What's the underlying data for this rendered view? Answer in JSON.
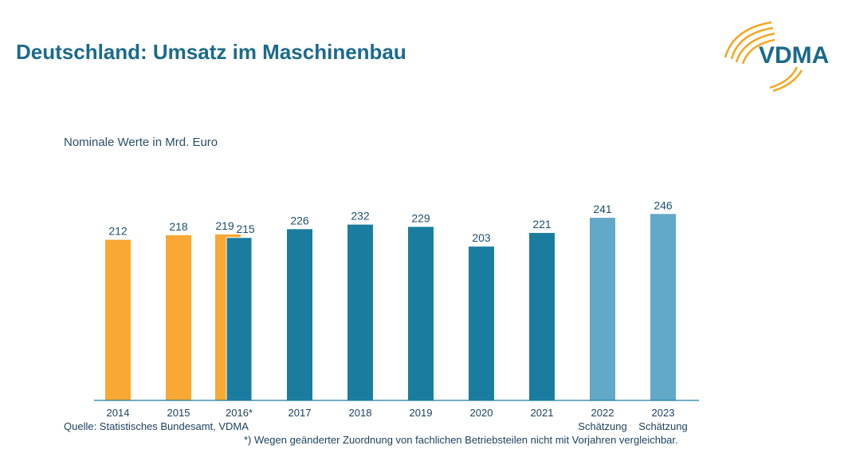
{
  "title": "Deutschland: Umsatz im Maschinenbau",
  "logo_text": "VDMA",
  "colors": {
    "title": "#1b6a8a",
    "old": "#f9a833",
    "new": "#1a7da0",
    "estimate": "#62a8c9"
  },
  "chart_data": {
    "type": "bar",
    "subtitle": "Nominale Werte in Mrd. Euro",
    "categories": [
      "2014",
      "2015",
      "2016*",
      "2017",
      "2018",
      "2019",
      "2020",
      "2021",
      "2022",
      "2023"
    ],
    "category_sublabels": [
      "",
      "",
      "",
      "",
      "",
      "",
      "",
      "",
      "Schätzung",
      "Schätzung"
    ],
    "series": [
      {
        "values": [
          212,
          218,
          219,
          null,
          null,
          null,
          null,
          null,
          null,
          null
        ],
        "color": "#f9a833"
      },
      {
        "values": [
          null,
          null,
          215,
          226,
          232,
          229,
          203,
          221,
          null,
          null
        ],
        "color": "#1a7da0"
      },
      {
        "values": [
          null,
          null,
          null,
          null,
          null,
          null,
          null,
          null,
          241,
          246
        ],
        "color": "#62a8c9"
      }
    ],
    "ylim": [
      0,
      260
    ],
    "grid": false
  },
  "source": "Quelle: Statistisches Bundesamt, VDMA",
  "footnote": "*) Wegen geänderter Zuordnung von fachlichen Betriebsteilen nicht mit Vorjahren vergleichbar."
}
